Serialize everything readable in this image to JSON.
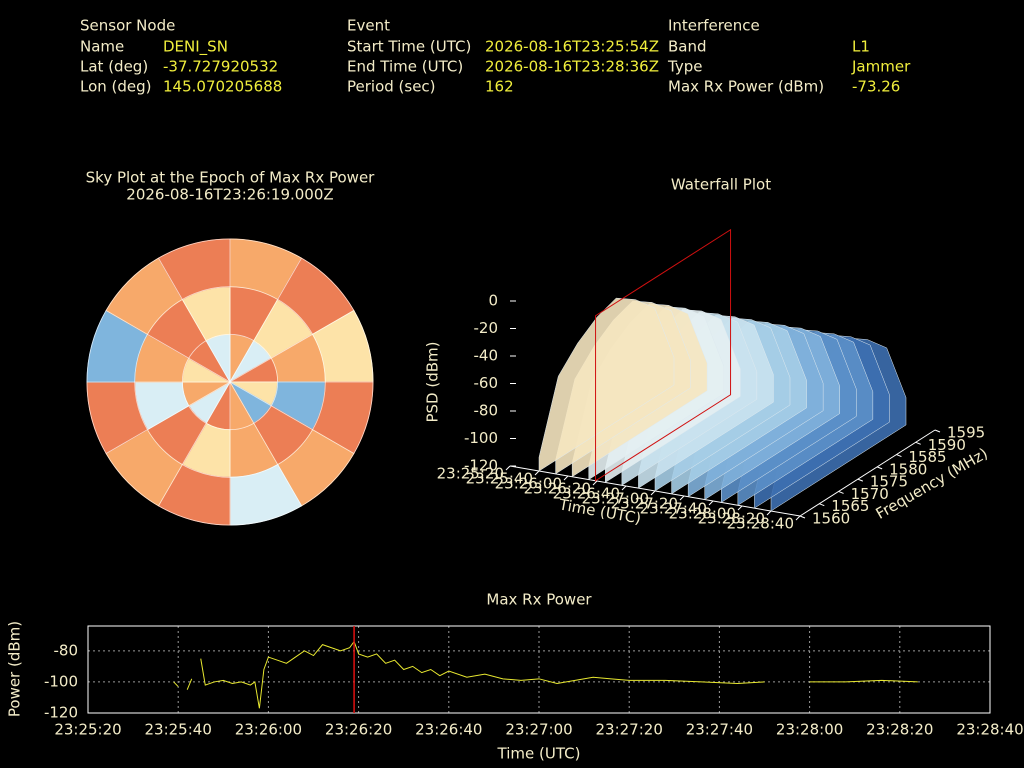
{
  "header": {
    "columns": [
      {
        "title": "Sensor Node",
        "rows": [
          [
            "Name",
            "DENI_SN"
          ],
          [
            "Lat (deg)",
            "-37.727920532"
          ],
          [
            "Lon (deg)",
            "145.070205688"
          ]
        ]
      },
      {
        "title": "Event",
        "rows": [
          [
            "Start Time (UTC)",
            "2026-08-16T23:25:54Z"
          ],
          [
            "End Time (UTC)",
            "2026-08-16T23:28:36Z"
          ],
          [
            "Period (sec)",
            "162"
          ]
        ]
      },
      {
        "title": "Interference",
        "rows": [
          [
            "Band",
            "L1"
          ],
          [
            "Type",
            "Jammer"
          ],
          [
            "Max Rx Power (dBm)",
            "-73.26"
          ]
        ]
      }
    ]
  },
  "chart_data": [
    {
      "type": "polar_heatmap",
      "title": "Sky Plot at the Epoch of Max Rx Power",
      "subtitle": "2026-08-16T23:26:19.000Z",
      "palette": [
        "#2b4f9e",
        "#7fb5dd",
        "#d9eef5",
        "#fde3a8",
        "#f7a96a",
        "#ec7e55"
      ],
      "values": [
        [
          4,
          2,
          5,
          3,
          1,
          4,
          5,
          2,
          4,
          3,
          5,
          2
        ],
        [
          5,
          3,
          4,
          1,
          5,
          4,
          3,
          5,
          2,
          4,
          5,
          3
        ],
        [
          4,
          5,
          3,
          5,
          4,
          2,
          5,
          4,
          5,
          1,
          4,
          5
        ]
      ]
    },
    {
      "type": "surface3d",
      "title": "Waterfall Plot",
      "xlabel": "Time (UTC)",
      "ylabel": "Frequency (MHz)",
      "zlabel": "PSD (dBm)",
      "xlim": [
        "23:25:20",
        "23:28:40"
      ],
      "xticks": [
        "23:25:20",
        "23:25:40",
        "23:26:00",
        "23:26:20",
        "23:26:40",
        "23:27:00",
        "23:27:20",
        "23:27:40",
        "23:28:00",
        "23:28:20",
        "23:28:40"
      ],
      "ylim": [
        1560,
        1595
      ],
      "yticks": [
        1560,
        1565,
        1570,
        1575,
        1580,
        1585,
        1590,
        1595
      ],
      "zlim": [
        -120,
        0
      ],
      "zticks": [
        0,
        -20,
        -40,
        -60,
        -80,
        -100,
        -120
      ],
      "time_range": [
        "23:25:40",
        "23:28:20"
      ],
      "frequency": [
        1560,
        1565,
        1570,
        1575,
        1580,
        1585,
        1590,
        1595
      ],
      "psd": [
        -110,
        -60,
        -45,
        -35,
        -30,
        -40,
        -55,
        -100
      ],
      "marker_x": "23:26:19"
    },
    {
      "type": "line",
      "title": "Max Rx Power",
      "xlabel": "Time (UTC)",
      "ylabel": "Power (dBm)",
      "xlim": [
        "23:25:20",
        "23:28:40"
      ],
      "xticks": [
        "23:25:20",
        "23:25:40",
        "23:26:00",
        "23:26:20",
        "23:26:40",
        "23:27:00",
        "23:27:20",
        "23:27:40",
        "23:28:00",
        "23:28:20",
        "23:28:40"
      ],
      "ylim": [
        -120,
        -64
      ],
      "yticks": [
        -80,
        -100,
        -120
      ],
      "grid": true,
      "marker_x": "23:26:19",
      "series": [
        {
          "name": "Max Rx Power",
          "color": "#e8e830",
          "x": [
            "23:25:39",
            "23:25:40",
            "23:25:41",
            "23:25:42",
            "23:25:43",
            "23:25:44",
            "23:25:45",
            "23:25:46",
            "23:25:48",
            "23:25:50",
            "23:25:52",
            "23:25:54",
            "23:25:56",
            "23:25:57",
            "23:25:58",
            "23:25:59",
            "23:26:00",
            "23:26:02",
            "23:26:04",
            "23:26:06",
            "23:26:08",
            "23:26:10",
            "23:26:12",
            "23:26:14",
            "23:26:16",
            "23:26:18",
            "23:26:19",
            "23:26:20",
            "23:26:22",
            "23:26:24",
            "23:26:26",
            "23:26:28",
            "23:26:30",
            "23:26:32",
            "23:26:34",
            "23:26:36",
            "23:26:38",
            "23:26:40",
            "23:26:44",
            "23:26:48",
            "23:26:52",
            "23:26:56",
            "23:27:00",
            "23:27:04",
            "23:27:08",
            "23:27:12",
            "23:27:16",
            "23:27:20",
            "23:27:28",
            "23:27:36",
            "23:27:44",
            "23:27:50",
            "23:27:55",
            "23:28:00",
            "23:28:08",
            "23:28:16",
            "23:28:24"
          ],
          "values": [
            -100,
            -103,
            null,
            -105,
            -98,
            null,
            -85,
            -102,
            -100,
            -99,
            -101,
            -100,
            -102,
            -100,
            -117,
            -92,
            -84,
            -86,
            -88,
            -84,
            -80,
            -83,
            -76,
            -78,
            -80,
            -78,
            -74,
            -82,
            -84,
            -82,
            -88,
            -86,
            -92,
            -90,
            -94,
            -92,
            -96,
            -93,
            -97,
            -95,
            -98,
            -99,
            -98,
            -101,
            -99,
            -97,
            -98,
            -99,
            -99,
            -100,
            -101,
            -100,
            null,
            -100,
            -100,
            -99,
            -100
          ]
        }
      ]
    }
  ]
}
